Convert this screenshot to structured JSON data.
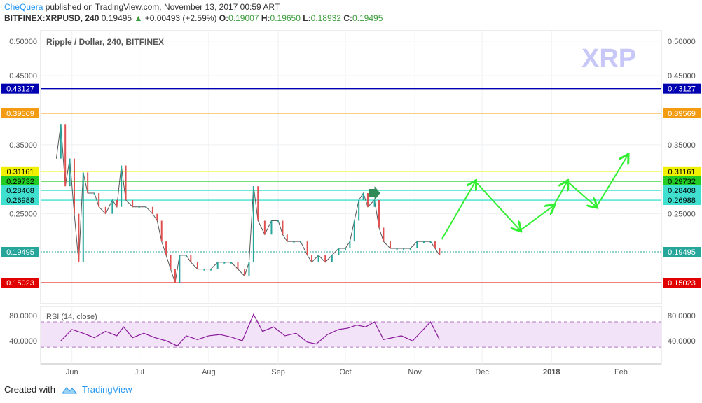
{
  "header": {
    "author": "CheQuera",
    "published_text": "published on TradingView.com, November 13, 2017 00:59 ART",
    "symbol": "BITFINEX:XRPUSD, 240",
    "last": "0.19495",
    "change": "+0.00493 (+2.59%)",
    "o_label": "O:",
    "o_val": "0.19007",
    "h_label": "H:",
    "h_val": "0.19650",
    "l_label": "L:",
    "l_val": "0.18932",
    "c_label": "C:",
    "c_val": "0.19495"
  },
  "footer": {
    "created_with": "Created with",
    "brand": "TradingView"
  },
  "chart_data": {
    "type": "line",
    "title": "Ripple / Dollar, 240, BITFINEX",
    "watermark": "XRP",
    "price_axis": {
      "ticks": [
        "0.50000",
        "0.45000",
        "0.35000",
        "0.25000"
      ],
      "min": 0.12,
      "max": 0.515
    },
    "x_axis": {
      "ticks": [
        "Jun",
        "Jul",
        "Aug",
        "Sep",
        "Oct",
        "Nov",
        "Dec",
        "2018",
        "Feb"
      ]
    },
    "levels": [
      {
        "label": "0.43127",
        "value": 0.43127,
        "color": "#0000b0"
      },
      {
        "label": "0.39569",
        "value": 0.39569,
        "color": "#f39c12"
      },
      {
        "label": "0.31161",
        "value": 0.31161,
        "color": "#f0f000"
      },
      {
        "label": "0.29732",
        "value": 0.29732,
        "color": "#22cc22"
      },
      {
        "label": "0.28408",
        "value": 0.28408,
        "color": "#40e0d0"
      },
      {
        "label": "0.26988",
        "value": 0.26988,
        "color": "#40e0d0"
      },
      {
        "label": "0.19495",
        "value": 0.19495,
        "color": "#26a69a"
      },
      {
        "label": "0.15023",
        "value": 0.15023,
        "color": "#e00000"
      }
    ],
    "price_path": [
      [
        "2017-05-25",
        0.33
      ],
      [
        "2017-05-27",
        0.38
      ],
      [
        "2017-05-29",
        0.29
      ],
      [
        "2017-05-31",
        0.33
      ],
      [
        "2017-06-02",
        0.25
      ],
      [
        "2017-06-04",
        0.18
      ],
      [
        "2017-06-06",
        0.31
      ],
      [
        "2017-06-08",
        0.28
      ],
      [
        "2017-06-11",
        0.28
      ],
      [
        "2017-06-13",
        0.26
      ],
      [
        "2017-06-16",
        0.25
      ],
      [
        "2017-06-19",
        0.27
      ],
      [
        "2017-06-21",
        0.26
      ],
      [
        "2017-06-23",
        0.32
      ],
      [
        "2017-06-25",
        0.27
      ],
      [
        "2017-06-28",
        0.26
      ],
      [
        "2017-07-01",
        0.26
      ],
      [
        "2017-07-04",
        0.26
      ],
      [
        "2017-07-07",
        0.25
      ],
      [
        "2017-07-09",
        0.24
      ],
      [
        "2017-07-11",
        0.21
      ],
      [
        "2017-07-13",
        0.19
      ],
      [
        "2017-07-15",
        0.17
      ],
      [
        "2017-07-17",
        0.15
      ],
      [
        "2017-07-19",
        0.19
      ],
      [
        "2017-07-22",
        0.19
      ],
      [
        "2017-07-24",
        0.18
      ],
      [
        "2017-07-27",
        0.17
      ],
      [
        "2017-07-30",
        0.17
      ],
      [
        "2017-08-02",
        0.17
      ],
      [
        "2017-08-05",
        0.18
      ],
      [
        "2017-08-08",
        0.18
      ],
      [
        "2017-08-11",
        0.18
      ],
      [
        "2017-08-14",
        0.17
      ],
      [
        "2017-08-17",
        0.16
      ],
      [
        "2017-08-19",
        0.18
      ],
      [
        "2017-08-21",
        0.29
      ],
      [
        "2017-08-23",
        0.24
      ],
      [
        "2017-08-26",
        0.22
      ],
      [
        "2017-08-29",
        0.24
      ],
      [
        "2017-09-01",
        0.24
      ],
      [
        "2017-09-03",
        0.22
      ],
      [
        "2017-09-05",
        0.21
      ],
      [
        "2017-09-08",
        0.21
      ],
      [
        "2017-09-11",
        0.21
      ],
      [
        "2017-09-14",
        0.19
      ],
      [
        "2017-09-16",
        0.18
      ],
      [
        "2017-09-19",
        0.19
      ],
      [
        "2017-09-22",
        0.18
      ],
      [
        "2017-09-25",
        0.19
      ],
      [
        "2017-09-28",
        0.2
      ],
      [
        "2017-10-01",
        0.2
      ],
      [
        "2017-10-03",
        0.21
      ],
      [
        "2017-10-05",
        0.24
      ],
      [
        "2017-10-07",
        0.27
      ],
      [
        "2017-10-09",
        0.28
      ],
      [
        "2017-10-11",
        0.26
      ],
      [
        "2017-10-14",
        0.27
      ],
      [
        "2017-10-16",
        0.23
      ],
      [
        "2017-10-18",
        0.21
      ],
      [
        "2017-10-21",
        0.2
      ],
      [
        "2017-10-24",
        0.2
      ],
      [
        "2017-10-27",
        0.2
      ],
      [
        "2017-10-30",
        0.2
      ],
      [
        "2017-11-02",
        0.21
      ],
      [
        "2017-11-05",
        0.21
      ],
      [
        "2017-11-08",
        0.21
      ],
      [
        "2017-11-10",
        0.2
      ],
      [
        "2017-11-12",
        0.19
      ]
    ],
    "projection": [
      [
        "2017-11-13",
        0.213
      ],
      [
        "2017-11-28",
        0.297
      ],
      [
        "2017-12-18",
        0.226
      ],
      [
        "2018-01-02",
        0.262
      ],
      [
        "2018-01-08",
        0.297
      ],
      [
        "2018-01-21",
        0.26
      ],
      [
        "2018-02-04",
        0.335
      ]
    ],
    "rsi": {
      "label": "RSI (14, close)",
      "ticks": [
        "80.0000",
        "40.0000"
      ],
      "upper": 70,
      "lower": 30,
      "path": [
        [
          "2017-05-27",
          40
        ],
        [
          "2017-06-01",
          58
        ],
        [
          "2017-06-06",
          52
        ],
        [
          "2017-06-11",
          45
        ],
        [
          "2017-06-16",
          55
        ],
        [
          "2017-06-21",
          48
        ],
        [
          "2017-06-24",
          62
        ],
        [
          "2017-06-28",
          45
        ],
        [
          "2017-07-03",
          52
        ],
        [
          "2017-07-08",
          45
        ],
        [
          "2017-07-13",
          40
        ],
        [
          "2017-07-18",
          32
        ],
        [
          "2017-07-22",
          48
        ],
        [
          "2017-07-27",
          42
        ],
        [
          "2017-08-01",
          48
        ],
        [
          "2017-08-06",
          50
        ],
        [
          "2017-08-11",
          46
        ],
        [
          "2017-08-16",
          40
        ],
        [
          "2017-08-21",
          82
        ],
        [
          "2017-08-25",
          55
        ],
        [
          "2017-08-30",
          62
        ],
        [
          "2017-09-04",
          48
        ],
        [
          "2017-09-09",
          52
        ],
        [
          "2017-09-14",
          38
        ],
        [
          "2017-09-18",
          35
        ],
        [
          "2017-09-23",
          50
        ],
        [
          "2017-09-28",
          58
        ],
        [
          "2017-10-02",
          60
        ],
        [
          "2017-10-06",
          65
        ],
        [
          "2017-10-10",
          62
        ],
        [
          "2017-10-14",
          70
        ],
        [
          "2017-10-18",
          42
        ],
        [
          "2017-10-22",
          45
        ],
        [
          "2017-10-26",
          48
        ],
        [
          "2017-10-31",
          40
        ],
        [
          "2017-11-04",
          55
        ],
        [
          "2017-11-08",
          70
        ],
        [
          "2017-11-12",
          42
        ]
      ]
    },
    "arrow_marker_date": "2017-10-14"
  }
}
